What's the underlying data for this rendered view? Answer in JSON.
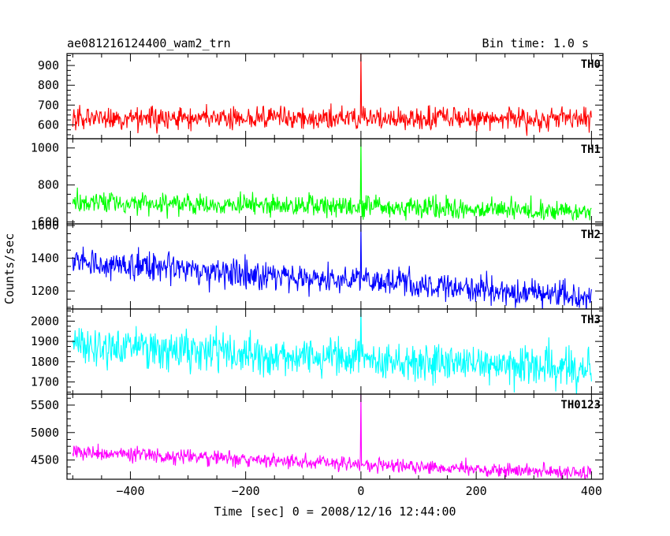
{
  "header": {
    "title": "ae081216124400_wam2_trn",
    "bin_time": "Bin time: 1.0 s"
  },
  "axes": {
    "xlabel": "Time [sec] 0 = 2008/12/16 12:44:00",
    "ylabel": "Counts/sec"
  },
  "chart_data": {
    "type": "line",
    "title": "ae081216124400_wam2_trn",
    "subtitle": "Bin time: 1.0 s",
    "xlabel": "Time [sec] 0 = 2008/12/16 12:44:00",
    "ylabel": "Counts/sec",
    "xlim": [
      -510,
      420
    ],
    "x_range": [
      -500,
      400
    ],
    "x_ticks": [
      -400,
      -200,
      0,
      200,
      400
    ],
    "panels": [
      {
        "name": "TH0",
        "color": "#ff0000",
        "ylim": [
          530,
          960
        ],
        "yticks": [
          600,
          700,
          800,
          900
        ],
        "start": 635,
        "end": 630,
        "noise": 28,
        "spikes": 18,
        "burst_at": 0,
        "burst_peak": 960
      },
      {
        "name": "TH1",
        "color": "#00ff00",
        "ylim": [
          590,
          1050
        ],
        "yticks": [
          600,
          800,
          1000
        ],
        "start": 710,
        "end": 655,
        "noise": 28,
        "spikes": 18,
        "burst_at": 0,
        "burst_peak": 1050
      },
      {
        "name": "TH2",
        "color": "#0000ff",
        "ylim": [
          1090,
          1610
        ],
        "yticks": [
          1200,
          1400,
          1600
        ],
        "start": 1375,
        "end": 1165,
        "noise": 42,
        "spikes": 22,
        "burst_at": 0,
        "burst_peak": 1610
      },
      {
        "name": "TH3",
        "color": "#00ffff",
        "ylim": [
          1640,
          2060
        ],
        "yticks": [
          1700,
          1800,
          1900,
          2000
        ],
        "start": 1880,
        "end": 1760,
        "noise": 48,
        "spikes": 28,
        "burst_at": 0,
        "burst_peak": 2060
      },
      {
        "name": "TH0123",
        "color": "#ff00ff",
        "ylim": [
          4150,
          5700
        ],
        "yticks": [
          4500,
          5000,
          5500
        ],
        "start": 4640,
        "end": 4250,
        "noise": 65,
        "spikes": 22,
        "burst_at": 0,
        "burst_peak": 5700
      }
    ]
  }
}
